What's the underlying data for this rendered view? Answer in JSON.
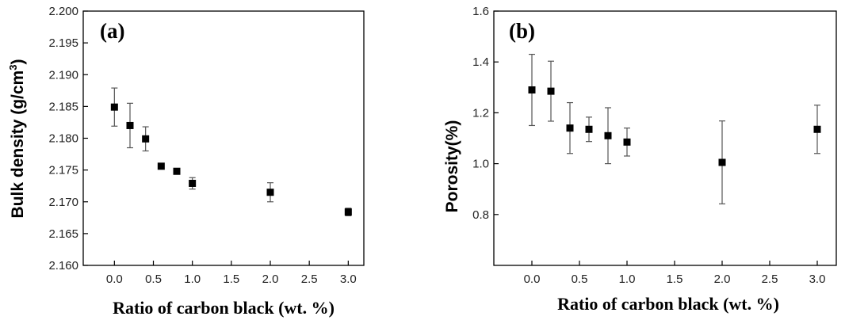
{
  "chart_data": [
    {
      "type": "scatter",
      "panel_label": "(a)",
      "ylabel": "Bulk density (g/cm",
      "ylabel_sup": "3",
      "ylabel_close": ")",
      "xlabel": "Ratio of carbon black (wt. %)",
      "xlim": [
        -0.4,
        3.2
      ],
      "ylim": [
        2.16,
        2.2
      ],
      "xticks": [
        "0.0",
        "0.5",
        "1.0",
        "1.5",
        "2.0",
        "2.5",
        "3.0"
      ],
      "xtick_values": [
        0,
        0.5,
        1,
        1.5,
        2,
        2.5,
        3
      ],
      "yticks": [
        "2.160",
        "2.165",
        "2.170",
        "2.175",
        "2.180",
        "2.185",
        "2.190",
        "2.195",
        "2.200"
      ],
      "ytick_values": [
        2.16,
        2.165,
        2.17,
        2.175,
        2.18,
        2.185,
        2.19,
        2.195,
        2.2
      ],
      "x": [
        0,
        0.2,
        0.4,
        0.6,
        0.8,
        1.0,
        2.0,
        3.0
      ],
      "y": [
        2.1849,
        2.182,
        2.1799,
        2.1756,
        2.1748,
        2.1729,
        2.1715,
        2.1684
      ],
      "err": [
        0.003,
        0.0035,
        0.0019,
        0.0004,
        0.0003,
        0.0009,
        0.0015,
        0.0006
      ],
      "grid": false
    },
    {
      "type": "scatter",
      "panel_label": "(b)",
      "ylabel": "Porosity(%)",
      "xlabel": "Ratio of carbon black (wt. %)",
      "xlim": [
        -0.4,
        3.2
      ],
      "ylim": [
        0.6,
        1.6
      ],
      "xticks": [
        "0.0",
        "0.5",
        "1.0",
        "1.5",
        "2.0",
        "2.5",
        "3.0"
      ],
      "xtick_values": [
        0,
        0.5,
        1,
        1.5,
        2,
        2.5,
        3
      ],
      "yticks": [
        "0.8",
        "1.0",
        "1.2",
        "1.4",
        "1.6"
      ],
      "ytick_values": [
        0.8,
        1.0,
        1.2,
        1.4,
        1.6
      ],
      "x": [
        0,
        0.2,
        0.4,
        0.6,
        0.8,
        1.0,
        2.0,
        3.0
      ],
      "y": [
        1.29,
        1.285,
        1.14,
        1.135,
        1.11,
        1.085,
        1.005,
        1.135
      ],
      "err": [
        0.14,
        0.118,
        0.1,
        0.048,
        0.11,
        0.055,
        0.163,
        0.095
      ],
      "grid": false
    }
  ]
}
